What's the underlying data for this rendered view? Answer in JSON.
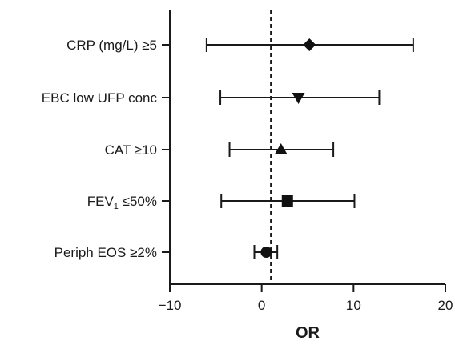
{
  "chart_data": {
    "type": "forest",
    "xlabel": "OR",
    "xlim": [
      -10,
      20
    ],
    "xticks": [
      -10,
      0,
      10,
      20
    ],
    "tick_labels": [
      "−10",
      "0",
      "10",
      "20"
    ],
    "reference_line": 1,
    "categories": [
      {
        "label": "CRP (mg/L) ≥5",
        "estimate": 5.2,
        "lower": -6,
        "upper": 16.5,
        "marker": "diamond"
      },
      {
        "label": "EBC low UFP conc",
        "estimate": 4.0,
        "lower": -4.5,
        "upper": 12.8,
        "marker": "triangle-down"
      },
      {
        "label": "CAT ≥10",
        "estimate": 2.1,
        "lower": -3.5,
        "upper": 7.8,
        "marker": "triangle-up"
      },
      {
        "label_main": "FEV",
        "label_sub": "1",
        "label_rest": " ≤50%",
        "estimate": 2.8,
        "lower": -4.4,
        "upper": 10.1,
        "marker": "square"
      },
      {
        "label": "Periph EOS ≥2%",
        "estimate": 0.5,
        "lower": -0.8,
        "upper": 1.7,
        "marker": "circle"
      }
    ]
  }
}
